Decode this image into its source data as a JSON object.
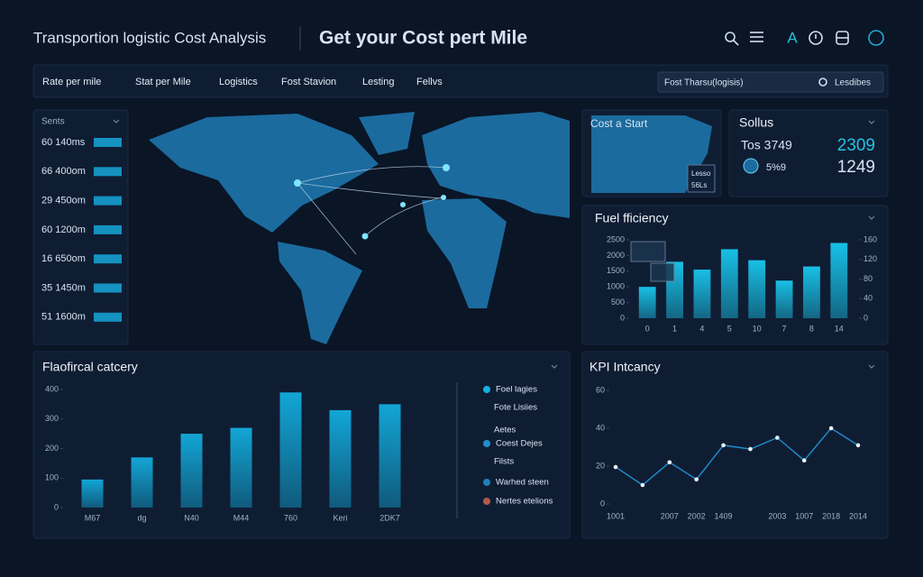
{
  "header": {
    "title": "Transportion logistic Cost Analysis",
    "headline": "Get your Cost pert Mile",
    "icon_letter": "A"
  },
  "nav": {
    "tabs": [
      "Rate per mile",
      "Stat per Mile",
      "Logistics",
      "Fost Stavion",
      "Lesting",
      "Fellvs"
    ],
    "search_text": "Fost Tharsu(logisis)",
    "search_button": "Lesdibes"
  },
  "sidebar": {
    "label": "Sents",
    "items": [
      "60 140ms",
      "66 400om",
      "29 450om",
      "60 1200m",
      "16 650om",
      "35 1450m",
      "51 1600m"
    ]
  },
  "cost_panel": {
    "title": "Cost a Start",
    "badge": [
      "Lesso",
      "56Ls"
    ]
  },
  "status_panel": {
    "title": "Sollus",
    "rows": [
      {
        "label": "Tos 3749",
        "value": 2309
      },
      {
        "label": "5%9",
        "value": 1249
      }
    ]
  },
  "fuel_chart": {
    "type": "bar",
    "title": "Fuel fficiency",
    "categories": [
      "0",
      "1",
      "4",
      "5",
      "10",
      "7",
      "8",
      "14"
    ],
    "values": [
      1000,
      1800,
      1550,
      2200,
      1850,
      1200,
      1650,
      2400
    ],
    "color": "#18c0e6",
    "ylim": [
      0,
      2500
    ],
    "yticks": [
      0,
      500,
      1000,
      1500,
      2000,
      2500
    ],
    "y2lim": [
      0,
      160
    ],
    "y2ticks": [
      0,
      40,
      80,
      120,
      160
    ]
  },
  "category_chart": {
    "type": "bar",
    "title": "Flaofircal catcery",
    "categories": [
      "M67",
      "dg",
      "N40",
      "M44",
      "760",
      "Keri",
      "2DK7"
    ],
    "values": [
      95,
      170,
      250,
      270,
      390,
      330,
      350
    ],
    "color": "#12a6d6",
    "ylim": [
      0,
      400
    ],
    "yticks": [
      0,
      100,
      200,
      300,
      400
    ]
  },
  "legend": [
    {
      "name": "Foel lagies",
      "color": "#1ab0e0"
    },
    {
      "name": "Fote Lisiies"
    },
    {
      "name": "Aetes"
    },
    {
      "name": "Coest Dejes",
      "color": "#1f8fd0"
    },
    {
      "name": "Filsts"
    },
    {
      "name": "Warhed steen",
      "color": "#1e7fb8"
    },
    {
      "name": "Nertes etelions",
      "color": "#b35a4a"
    }
  ],
  "kpi_chart": {
    "type": "line",
    "title": "KPI Intcancy",
    "categories": [
      "1001",
      null,
      "2007",
      "2002",
      "1409",
      null,
      "2003",
      "1007",
      "2018",
      "2014"
    ],
    "values": [
      19.5,
      10,
      22,
      13,
      31,
      29,
      35,
      23,
      40,
      31
    ],
    "color": "#1f8fd0",
    "ylim": [
      0,
      60
    ],
    "yticks": [
      0,
      20,
      40,
      60
    ]
  }
}
